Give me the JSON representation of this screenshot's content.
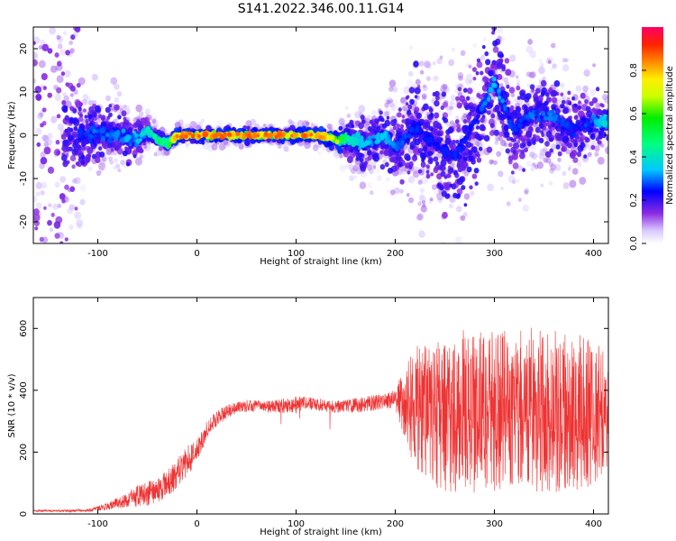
{
  "title": "S141.2022.346.00.11.G14",
  "colors": {
    "snr_line": "#ee3333",
    "axis": "#000000",
    "colormap": [
      "#c8b4ff",
      "#8a2be2",
      "#5a00ff",
      "#0000ff",
      "#00c8ff",
      "#00ff99",
      "#00ee00",
      "#ccff00",
      "#ffee00",
      "#ff8800",
      "#ff2200",
      "#ff0066"
    ]
  },
  "chart_data": [
    {
      "type": "heatmap",
      "title": "",
      "xlabel": "Height of straight line (km)",
      "ylabel": "Frequency (Hz)",
      "xlim": [
        -165,
        415
      ],
      "ylim": [
        -25,
        25
      ],
      "xticks": [
        -100,
        0,
        100,
        200,
        300,
        400
      ],
      "xtick_labels": [
        "-100",
        "0",
        "100",
        "200",
        "300",
        "400"
      ],
      "yticks": [
        -20,
        -10,
        0,
        10,
        20
      ],
      "ytick_labels": [
        "-20",
        "-10",
        "0",
        "10",
        "20"
      ],
      "grid": false,
      "colorbar": {
        "label": "Normalized spectral amplitude",
        "range": [
          0.0,
          1.0
        ],
        "ticks": [
          0.0,
          0.2,
          0.4,
          0.6,
          0.8
        ],
        "tick_labels": [
          "0.0",
          "0.2",
          "0.4",
          "0.6",
          "0.8"
        ]
      },
      "ridge": {
        "x": [
          -120,
          -100,
          -80,
          -60,
          -50,
          -40,
          -30,
          -20,
          0,
          20,
          40,
          60,
          80,
          100,
          120,
          140,
          150,
          170,
          190,
          200,
          220,
          240,
          260,
          280,
          300,
          320,
          340,
          360,
          380,
          400,
          415
        ],
        "y": [
          0,
          0.5,
          0,
          -1,
          1,
          -1,
          -2,
          0,
          0,
          0,
          0,
          0,
          0,
          0,
          0,
          -1,
          -1,
          -2,
          0,
          -3,
          2,
          -2,
          -5,
          3,
          12,
          1,
          5,
          4,
          1,
          3,
          3
        ],
        "amplitude": [
          0.25,
          0.3,
          0.3,
          0.35,
          0.4,
          0.5,
          0.5,
          0.85,
          0.85,
          0.85,
          0.85,
          0.85,
          0.85,
          0.85,
          0.85,
          0.7,
          0.45,
          0.35,
          0.35,
          0.3,
          0.25,
          0.25,
          0.25,
          0.25,
          0.35,
          0.25,
          0.3,
          0.3,
          0.25,
          0.3,
          0.4
        ],
        "spread_hz": [
          6,
          4,
          4,
          3,
          2,
          1.5,
          1.5,
          1,
          1,
          1,
          1,
          1,
          1,
          1,
          1,
          1.5,
          3,
          4,
          4,
          6,
          8,
          9,
          10,
          10,
          8,
          7,
          6,
          6,
          6,
          4,
          3
        ]
      }
    },
    {
      "type": "line",
      "title": "",
      "xlabel": "Height of straight line (km)",
      "ylabel": "SNR (10 * v/v)",
      "xlim": [
        -165,
        415
      ],
      "ylim": [
        0,
        700
      ],
      "xticks": [
        -100,
        0,
        100,
        200,
        300,
        400
      ],
      "xtick_labels": [
        "-100",
        "0",
        "100",
        "200",
        "300",
        "400"
      ],
      "yticks": [
        0,
        200,
        400,
        600
      ],
      "ytick_labels": [
        "0",
        "200",
        "400",
        "600"
      ],
      "grid": false,
      "envelope": {
        "x": [
          -165,
          -130,
          -110,
          -100,
          -90,
          -80,
          -70,
          -60,
          -50,
          -40,
          -30,
          -20,
          -10,
          0,
          10,
          20,
          30,
          40,
          50,
          60,
          70,
          80,
          90,
          100,
          110,
          120,
          130,
          140,
          150,
          160,
          170,
          180,
          190,
          200,
          210,
          220,
          230,
          240,
          250,
          260,
          270,
          280,
          290,
          300,
          310,
          320,
          330,
          340,
          350,
          360,
          370,
          380,
          390,
          400,
          410,
          415
        ],
        "mean": [
          10,
          10,
          12,
          18,
          25,
          35,
          45,
          60,
          65,
          75,
          100,
          130,
          170,
          200,
          270,
          310,
          330,
          345,
          350,
          350,
          345,
          350,
          350,
          355,
          360,
          355,
          350,
          345,
          350,
          350,
          355,
          360,
          365,
          370,
          360,
          340,
          330,
          325,
          320,
          320,
          330,
          335,
          330,
          330,
          325,
          330,
          340,
          335,
          330,
          335,
          330,
          330,
          325,
          330,
          330,
          330
        ],
        "amplitude": [
          3,
          4,
          5,
          8,
          12,
          18,
          25,
          35,
          40,
          40,
          45,
          50,
          50,
          40,
          30,
          25,
          22,
          20,
          20,
          20,
          20,
          20,
          25,
          30,
          20,
          20,
          20,
          20,
          20,
          25,
          25,
          25,
          25,
          30,
          120,
          200,
          230,
          240,
          250,
          260,
          270,
          270,
          260,
          260,
          270,
          260,
          260,
          270,
          260,
          270,
          260,
          260,
          250,
          240,
          200,
          180
        ]
      }
    }
  ]
}
